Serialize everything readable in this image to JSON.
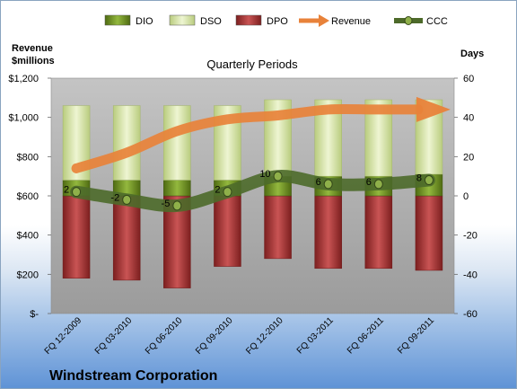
{
  "chart_data": {
    "type": "bar",
    "subtitle": "Quarterly Periods",
    "company": "Windstream Corporation",
    "left_axis_title": "Revenue\n$millions",
    "right_axis_title": "Days",
    "categories": [
      "FQ 12-2009",
      "FQ 03-2010",
      "FQ 06-2010",
      "FQ 09-2010",
      "FQ 12-2010",
      "FQ 03-2011",
      "FQ 06-2011",
      "FQ 09-2011"
    ],
    "y_left": {
      "range": [
        0,
        1200
      ],
      "ticks": [
        "$-",
        "$200",
        "$400",
        "$600",
        "$800",
        "$1,000",
        "$1,200"
      ],
      "tick_values": [
        0,
        200,
        400,
        600,
        800,
        1000,
        1200
      ]
    },
    "y_right": {
      "range": [
        -60,
        60
      ],
      "ticks": [
        "-60",
        "-40",
        "-20",
        "0",
        "20",
        "40",
        "60"
      ],
      "tick_values": [
        -60,
        -40,
        -20,
        0,
        20,
        40,
        60
      ]
    },
    "series": [
      {
        "name": "DIO",
        "kind": "stacked-bar",
        "axis": "right",
        "values": [
          8,
          8,
          8,
          8,
          10,
          10,
          10,
          11
        ]
      },
      {
        "name": "DSO",
        "kind": "stacked-bar",
        "axis": "right",
        "values": [
          38,
          38,
          38,
          38,
          39,
          39,
          39,
          38
        ]
      },
      {
        "name": "DPO",
        "kind": "negative-bar",
        "axis": "right",
        "values": [
          -42,
          -43,
          -47,
          -36,
          -32,
          -37,
          -37,
          -38
        ]
      },
      {
        "name": "Revenue",
        "kind": "line-arrow",
        "axis": "left",
        "values": [
          740,
          820,
          930,
          990,
          1010,
          1040,
          1040,
          1040
        ]
      },
      {
        "name": "CCC",
        "kind": "line-marker",
        "axis": "right",
        "values": [
          2,
          -2,
          -5,
          2,
          10,
          6,
          6,
          8
        ],
        "labels": [
          "2",
          "-2",
          "-5",
          "2",
          "10",
          "6",
          "6",
          "8"
        ]
      }
    ],
    "colors": {
      "DIO": "#6b8e23",
      "DSO": "#d7e4a8",
      "DPO": "#b03a3a",
      "Revenue": "#e8823a",
      "CCC": "#556b2f",
      "plot_bg": "#a6a6a6"
    },
    "legend_position": "top"
  }
}
